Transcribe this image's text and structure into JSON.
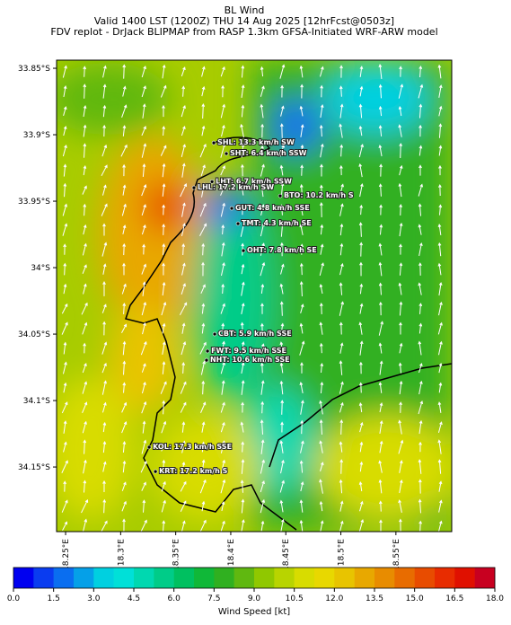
{
  "title": {
    "lines": [
      "BL Wind",
      "Valid 1400 LST (1200Z) THU 14 Aug 2025 [12hrFcst@0503z]",
      "FDV replot - DrJack BLIPMAP from RASP 1.3km GFSA-Initiated WRF-ARW model"
    ]
  },
  "map": {
    "xlim": [
      18.2418,
      18.6007
    ],
    "ylim": [
      -34.1986,
      -33.8439
    ],
    "xticks": [
      {
        "value": 18.25,
        "label": "18.25°E"
      },
      {
        "value": 18.3,
        "label": "18.3°E"
      },
      {
        "value": 18.35,
        "label": "18.35°E"
      },
      {
        "value": 18.4,
        "label": "18.4°E"
      },
      {
        "value": 18.45,
        "label": "18.45°E"
      },
      {
        "value": 18.5,
        "label": "18.5°E"
      },
      {
        "value": 18.55,
        "label": "18.55°E"
      }
    ],
    "yticks": [
      {
        "value": -33.85,
        "label": "33.85°S"
      },
      {
        "value": -33.9,
        "label": "33.9°S"
      },
      {
        "value": -33.95,
        "label": "33.95°S"
      },
      {
        "value": -34.0,
        "label": "34°S"
      },
      {
        "value": -34.05,
        "label": "34.05°S"
      },
      {
        "value": -34.1,
        "label": "34.1°S"
      },
      {
        "value": -34.15,
        "label": "34.15°S"
      }
    ],
    "stations": [
      {
        "label": "SHL: 13.3 km/h SW",
        "lat": -33.9061,
        "lon": 18.3846
      },
      {
        "label": "SHT: 6.4 km/h SSW",
        "lat": -33.9142,
        "lon": 18.396
      },
      {
        "label": "LHT: 6.7 km/h SSW",
        "lat": -33.9353,
        "lon": 18.383
      },
      {
        "label": "LHL: 17.2 km/h SW",
        "lat": -33.9399,
        "lon": 18.3666
      },
      {
        "label": "BTO: 10.2 km/h S",
        "lat": -33.946,
        "lon": 18.4449
      },
      {
        "label": "GUT: 4.8 km/h SSE",
        "lat": -33.9554,
        "lon": 18.4009
      },
      {
        "label": "TMT: 4.3 km/h SE",
        "lat": -33.9669,
        "lon": 18.4066
      },
      {
        "label": "OHT: 7.8 km/h SE",
        "lat": -33.9872,
        "lon": 18.4115
      },
      {
        "label": "CBT: 5.9 km/h SSE",
        "lat": -34.05,
        "lon": 18.3854
      },
      {
        "label": "FWT: 9.5 km/h SSE",
        "lat": -34.0628,
        "lon": 18.3789
      },
      {
        "label": "NHT: 10.6 km/h SSE",
        "lat": -34.0696,
        "lon": 18.378
      },
      {
        "label": "KOL: 17.3 km/h SSE",
        "lat": -34.1351,
        "lon": 18.3259
      },
      {
        "label": "KRT: 17.2 km/h S",
        "lat": -34.1534,
        "lon": 18.3316
      }
    ]
  },
  "colorbar": {
    "label": "Wind Speed [kt]",
    "lim": [
      0,
      18
    ],
    "ticks": [
      {
        "value": 0,
        "label": "0.0"
      },
      1.5,
      {
        "value": 3,
        "label": "3.0"
      },
      4.5,
      {
        "value": 6,
        "label": "6.0"
      },
      7.5,
      {
        "value": 9,
        "label": "9.0"
      },
      10.5,
      {
        "value": 12,
        "label": "12.0"
      },
      13.5,
      {
        "value": 15,
        "label": "15.0"
      },
      16.5,
      {
        "value": 18,
        "label": "18.0"
      }
    ],
    "colors": [
      "#0000f0",
      "#0a3cf0",
      "#0a6ef0",
      "#05a0e8",
      "#00d0e0",
      "#00e0d8",
      "#00d8b0",
      "#00cc88",
      "#00c060",
      "#10b838",
      "#30b020",
      "#60b810",
      "#90c800",
      "#b8d400",
      "#d8dc00",
      "#e8d800",
      "#e8c400",
      "#e8a800",
      "#e88c00",
      "#e86c00",
      "#e84c00",
      "#e82c00",
      "#e01000",
      "#c80020"
    ]
  }
}
